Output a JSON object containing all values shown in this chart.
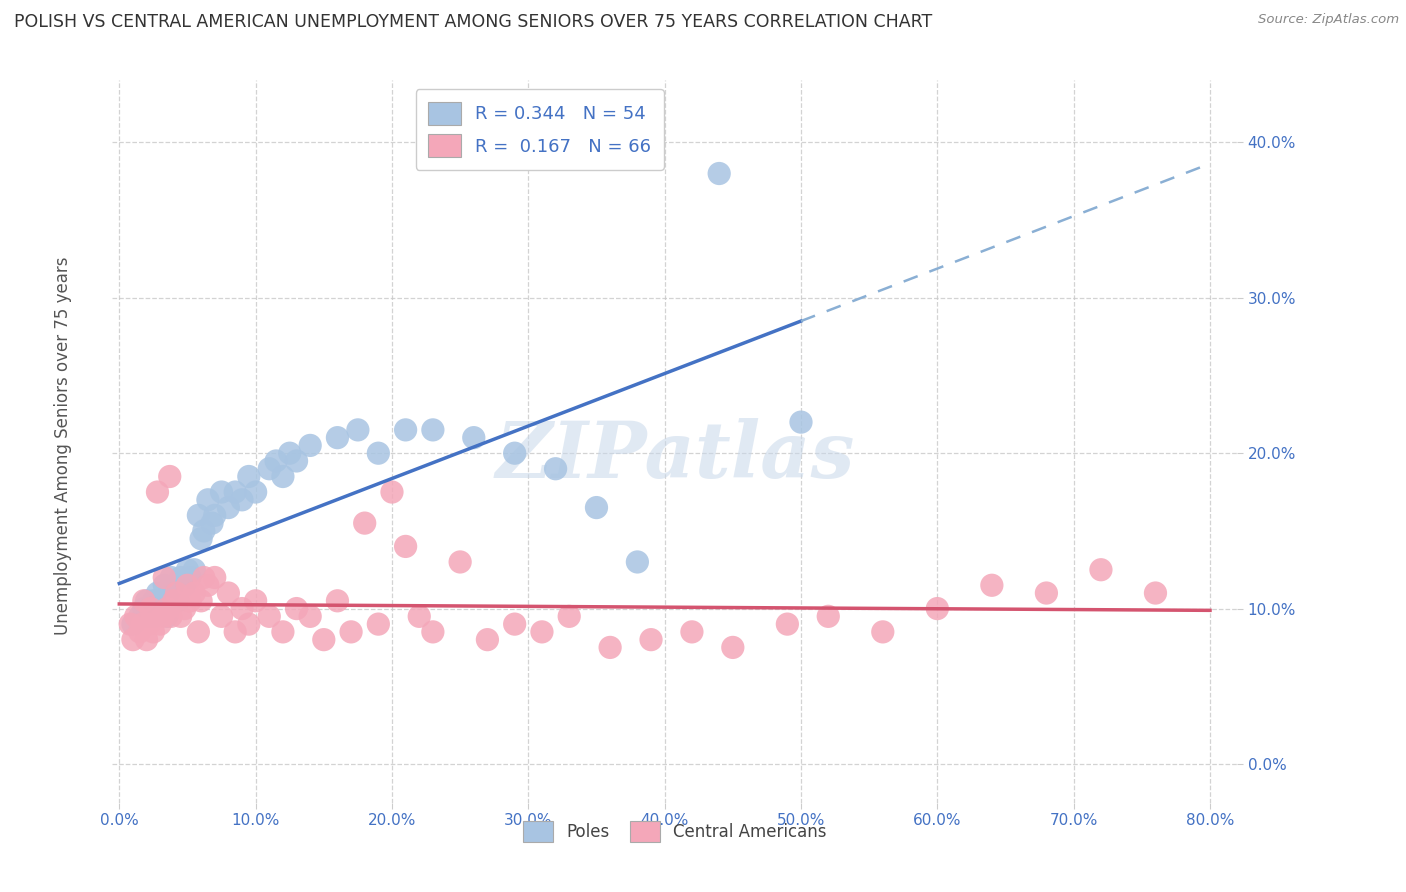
{
  "title": "POLISH VS CENTRAL AMERICAN UNEMPLOYMENT AMONG SENIORS OVER 75 YEARS CORRELATION CHART",
  "source": "Source: ZipAtlas.com",
  "ylabel": "Unemployment Among Seniors over 75 years",
  "xlim": [
    -0.005,
    0.82
  ],
  "ylim": [
    -0.025,
    0.44
  ],
  "yticks": [
    0.0,
    0.1,
    0.2,
    0.3,
    0.4
  ],
  "xticks": [
    0.0,
    0.1,
    0.2,
    0.3,
    0.4,
    0.5,
    0.6,
    0.7,
    0.8
  ],
  "watermark": "ZIPatlas",
  "R_poles": 0.344,
  "N_poles": 54,
  "R_ca": 0.167,
  "N_ca": 66,
  "poles_color": "#a8c4e2",
  "poles_line_color": "#4472c4",
  "poles_dash_color": "#8aafd4",
  "ca_color": "#f4a7b9",
  "ca_line_color": "#d4546f",
  "background_color": "#ffffff",
  "grid_color": "#c8c8c8",
  "tick_color": "#4472c4",
  "poles_x": [
    0.01,
    0.015,
    0.018,
    0.02,
    0.02,
    0.022,
    0.025,
    0.025,
    0.027,
    0.028,
    0.03,
    0.032,
    0.033,
    0.035,
    0.037,
    0.038,
    0.04,
    0.042,
    0.043,
    0.045,
    0.048,
    0.05,
    0.052,
    0.055,
    0.058,
    0.06,
    0.062,
    0.065,
    0.068,
    0.07,
    0.075,
    0.08,
    0.085,
    0.09,
    0.095,
    0.1,
    0.11,
    0.115,
    0.12,
    0.125,
    0.13,
    0.14,
    0.16,
    0.175,
    0.19,
    0.21,
    0.23,
    0.26,
    0.29,
    0.32,
    0.35,
    0.38,
    0.44,
    0.5
  ],
  "poles_y": [
    0.09,
    0.095,
    0.1,
    0.095,
    0.105,
    0.1,
    0.095,
    0.105,
    0.1,
    0.11,
    0.1,
    0.105,
    0.115,
    0.095,
    0.11,
    0.12,
    0.11,
    0.115,
    0.105,
    0.12,
    0.115,
    0.125,
    0.12,
    0.125,
    0.16,
    0.145,
    0.15,
    0.17,
    0.155,
    0.16,
    0.175,
    0.165,
    0.175,
    0.17,
    0.185,
    0.175,
    0.19,
    0.195,
    0.185,
    0.2,
    0.195,
    0.205,
    0.21,
    0.215,
    0.2,
    0.215,
    0.215,
    0.21,
    0.2,
    0.19,
    0.165,
    0.13,
    0.38,
    0.22
  ],
  "ca_x": [
    0.008,
    0.01,
    0.012,
    0.015,
    0.017,
    0.018,
    0.02,
    0.022,
    0.023,
    0.025,
    0.027,
    0.028,
    0.03,
    0.032,
    0.033,
    0.035,
    0.037,
    0.038,
    0.04,
    0.042,
    0.045,
    0.048,
    0.05,
    0.052,
    0.055,
    0.058,
    0.06,
    0.062,
    0.065,
    0.07,
    0.075,
    0.08,
    0.085,
    0.09,
    0.095,
    0.1,
    0.11,
    0.12,
    0.13,
    0.14,
    0.15,
    0.16,
    0.17,
    0.18,
    0.19,
    0.2,
    0.21,
    0.22,
    0.23,
    0.25,
    0.27,
    0.29,
    0.31,
    0.33,
    0.36,
    0.39,
    0.42,
    0.45,
    0.49,
    0.52,
    0.56,
    0.6,
    0.64,
    0.68,
    0.72,
    0.76
  ],
  "ca_y": [
    0.09,
    0.08,
    0.095,
    0.085,
    0.09,
    0.105,
    0.08,
    0.09,
    0.1,
    0.085,
    0.095,
    0.175,
    0.09,
    0.095,
    0.12,
    0.1,
    0.185,
    0.095,
    0.105,
    0.11,
    0.095,
    0.1,
    0.115,
    0.105,
    0.11,
    0.085,
    0.105,
    0.12,
    0.115,
    0.12,
    0.095,
    0.11,
    0.085,
    0.1,
    0.09,
    0.105,
    0.095,
    0.085,
    0.1,
    0.095,
    0.08,
    0.105,
    0.085,
    0.155,
    0.09,
    0.175,
    0.14,
    0.095,
    0.085,
    0.13,
    0.08,
    0.09,
    0.085,
    0.095,
    0.075,
    0.08,
    0.085,
    0.075,
    0.09,
    0.095,
    0.085,
    0.1,
    0.115,
    0.11,
    0.125,
    0.11
  ]
}
